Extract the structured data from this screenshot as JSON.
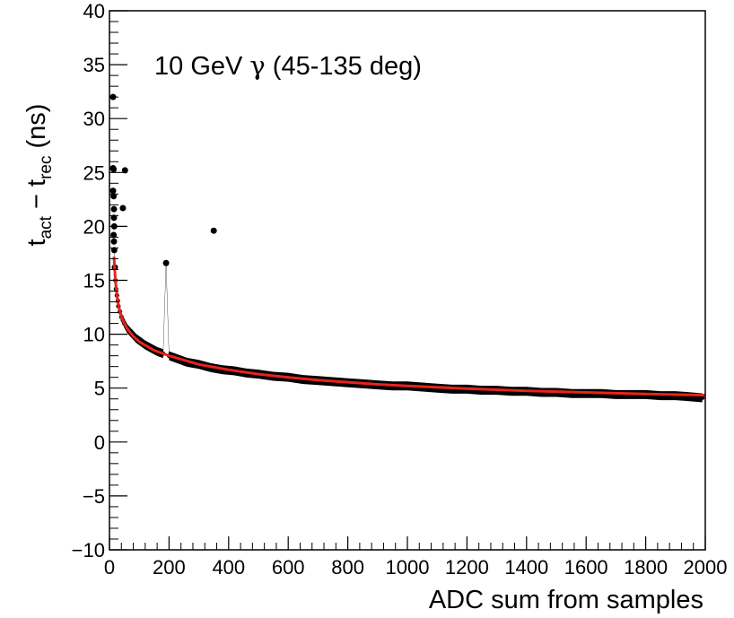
{
  "chart_data": {
    "type": "scatter",
    "title": "",
    "annotation": {
      "text_before": "10 GeV ",
      "symbol": "γ",
      "text_after": " (45-135 deg)"
    },
    "xlabel": "ADC sum from samples",
    "ylabel": {
      "main1": "t",
      "sub1": "act",
      "dash": " − ",
      "main2": "t",
      "sub2": "rec",
      "unit": " (ns)"
    },
    "xlim": [
      0,
      2000
    ],
    "ylim": [
      -10,
      40
    ],
    "xticks": [
      0,
      200,
      400,
      600,
      800,
      1000,
      1200,
      1400,
      1600,
      1800,
      2000
    ],
    "yticks": [
      -10,
      -5,
      0,
      5,
      10,
      15,
      20,
      25,
      30,
      35,
      40
    ],
    "ytick_labels": [
      "−10",
      "−5",
      "0",
      "5",
      "10",
      "15",
      "20",
      "25",
      "30",
      "35",
      "40"
    ],
    "grid": false,
    "series": [
      {
        "kind": "points",
        "color": "#000000",
        "x": [
          12,
          12,
          12,
          14,
          15,
          15,
          16,
          14,
          15,
          16,
          18,
          20,
          22,
          25,
          28,
          30,
          35,
          40,
          45,
          50,
          60,
          70,
          80,
          90,
          100,
          120,
          140,
          160,
          180,
          200,
          230,
          260,
          300,
          340,
          380,
          420,
          460,
          500,
          550,
          600,
          650,
          700,
          750,
          800,
          850,
          900,
          950,
          1000,
          1050,
          1100,
          1150,
          1200,
          1250,
          1300,
          1350,
          1400,
          1450,
          1500,
          1550,
          1600,
          1650,
          1700,
          1750,
          1800,
          1850,
          1900,
          1950,
          1990,
          14,
          52,
          45,
          190,
          350
        ],
        "y": [
          32.0,
          25.4,
          23.3,
          22.8,
          21.6,
          20.8,
          20.0,
          19.2,
          18.6,
          17.8,
          16.2,
          15.0,
          14.2,
          13.6,
          13.1,
          12.6,
          12.1,
          11.6,
          11.3,
          11.0,
          10.5,
          10.2,
          9.9,
          9.6,
          9.4,
          9.0,
          8.7,
          8.4,
          8.2,
          8.0,
          7.7,
          7.4,
          7.2,
          6.9,
          6.7,
          6.6,
          6.4,
          6.3,
          6.1,
          6.0,
          5.8,
          5.7,
          5.6,
          5.5,
          5.4,
          5.3,
          5.2,
          5.2,
          5.1,
          5.0,
          4.9,
          4.9,
          4.8,
          4.8,
          4.7,
          4.7,
          4.6,
          4.6,
          4.5,
          4.5,
          4.5,
          4.4,
          4.4,
          4.4,
          4.3,
          4.3,
          4.2,
          4.1,
          25.3,
          25.2,
          21.7,
          16.6,
          19.6
        ]
      },
      {
        "kind": "fit",
        "color": "#e8231c",
        "x": [
          15,
          20,
          25,
          30,
          40,
          50,
          60,
          80,
          100,
          150,
          200,
          250,
          300,
          400,
          500,
          600,
          700,
          800,
          900,
          1000,
          1200,
          1400,
          1600,
          1800,
          2000
        ],
        "y": [
          17.2,
          15.0,
          13.6,
          12.7,
          11.6,
          11.0,
          10.5,
          9.8,
          9.3,
          8.5,
          8.0,
          7.6,
          7.2,
          6.7,
          6.3,
          6.0,
          5.75,
          5.55,
          5.35,
          5.2,
          4.95,
          4.75,
          4.6,
          4.45,
          4.35
        ]
      }
    ]
  }
}
